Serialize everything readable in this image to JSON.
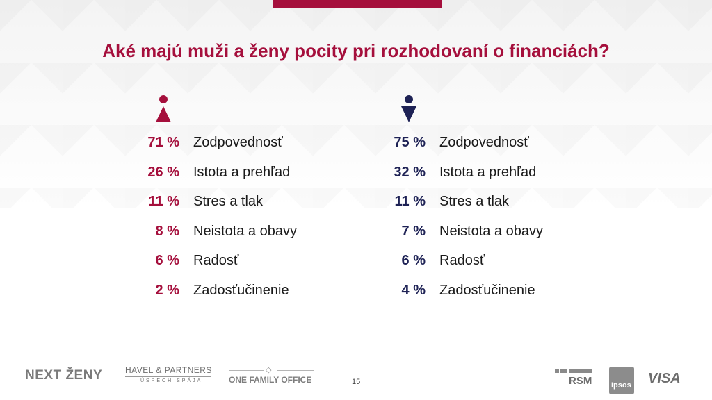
{
  "title": "Aké majú muži a ženy pocity pri rozhodovaní o financiách?",
  "women": {
    "icon": "female-icon",
    "color": "#a50f3c",
    "rows": [
      {
        "pct": "71 %",
        "label": "Zodpovednosť"
      },
      {
        "pct": "26 %",
        "label": "Istota a prehľad"
      },
      {
        "pct": "11 %",
        "label": "Stres a tlak"
      },
      {
        "pct": "8 %",
        "label": "Neistota a obavy"
      },
      {
        "pct": "6 %",
        "label": "Radosť"
      },
      {
        "pct": "2 %",
        "label": "Zadosťučinenie"
      }
    ]
  },
  "men": {
    "icon": "male-icon",
    "color": "#1e2255",
    "rows": [
      {
        "pct": "75 %",
        "label": "Zodpovednosť"
      },
      {
        "pct": "32 %",
        "label": "Istota a prehľad"
      },
      {
        "pct": "11 %",
        "label": "Stres a tlak"
      },
      {
        "pct": "7 %",
        "label": "Neistota a obavy"
      },
      {
        "pct": "6 %",
        "label": "Radosť"
      },
      {
        "pct": "4 %",
        "label": "Zadosťučinenie"
      }
    ]
  },
  "footer": {
    "logo_next_zeny": "NEXT ŽENY",
    "logo_havel_title": "HAVEL & PARTNERS",
    "logo_havel_sub": "ÚSPECH SPÁJA",
    "logo_one_family": "ONE FAMILY OFFICE",
    "page_number": "15",
    "logo_rsm": "RSM",
    "logo_ipsos": "Ipsos",
    "logo_visa": "VISA"
  }
}
